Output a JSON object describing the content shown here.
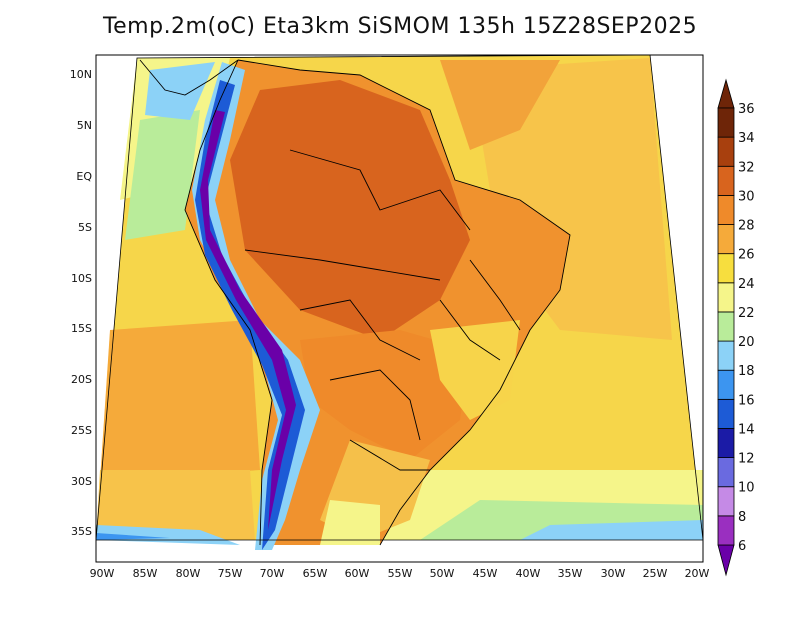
{
  "title": "Temp.2m(oC) Eta3km SiSMOM 135h 15Z28SEP2025",
  "map": {
    "lat_labels": [
      "10N",
      "5N",
      "EQ",
      "5S",
      "10S",
      "15S",
      "20S",
      "25S",
      "30S",
      "35S"
    ],
    "lon_labels": [
      "90W",
      "85W",
      "80W",
      "75W",
      "70W",
      "65W",
      "60W",
      "55W",
      "50W",
      "45W",
      "40W",
      "35W",
      "30W",
      "25W",
      "20W"
    ]
  },
  "colorbar": {
    "labels": [
      "6",
      "8",
      "10",
      "12",
      "14",
      "16",
      "18",
      "20",
      "22",
      "24",
      "26",
      "28",
      "30",
      "32",
      "34",
      "36"
    ],
    "colors": [
      "#6a00a8",
      "#9a2fc0",
      "#c58ae6",
      "#6a6ae0",
      "#1b1ba6",
      "#1d5bd6",
      "#3c95f0",
      "#8cd2f7",
      "#b9ec9a",
      "#f5f58a",
      "#f7de3e",
      "#f5aa3a",
      "#ef8a2a",
      "#d8641e",
      "#a8400e",
      "#6e2508"
    ]
  }
}
